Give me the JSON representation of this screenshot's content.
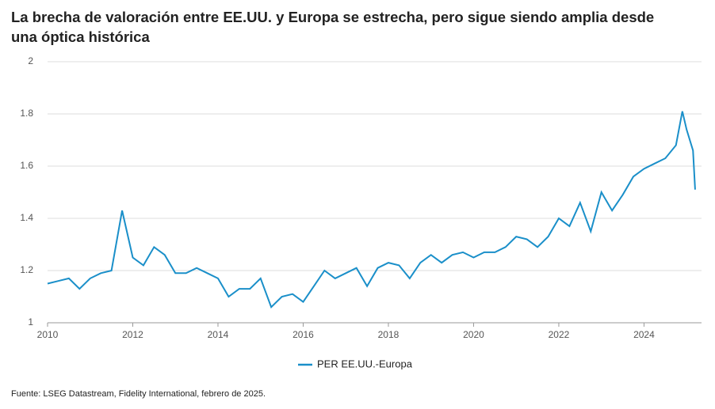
{
  "chart_data": {
    "type": "line",
    "title": "La brecha de valoración entre EE.UU. y Europa se estrecha, pero sigue siendo amplia desde una óptica histórica",
    "source": "Fuente: LSEG Datastream, Fidelity International, febrero de 2025.",
    "x": [
      2010,
      2010.25,
      2010.5,
      2010.75,
      2011,
      2011.25,
      2011.5,
      2011.75,
      2012,
      2012.25,
      2012.5,
      2012.75,
      2013,
      2013.25,
      2013.5,
      2013.75,
      2014,
      2014.25,
      2014.5,
      2014.75,
      2015,
      2015.25,
      2015.5,
      2015.75,
      2016,
      2016.25,
      2016.5,
      2016.75,
      2017,
      2017.25,
      2017.5,
      2017.75,
      2018,
      2018.25,
      2018.5,
      2018.75,
      2019,
      2019.25,
      2019.5,
      2019.75,
      2020,
      2020.25,
      2020.5,
      2020.75,
      2021,
      2021.25,
      2021.5,
      2021.75,
      2022,
      2022.25,
      2022.5,
      2022.75,
      2023,
      2023.25,
      2023.5,
      2023.75,
      2024,
      2024.25,
      2024.5,
      2024.75,
      2024.9,
      2025,
      2025.15,
      2025.2
    ],
    "series": [
      {
        "name": "PER EE.UU.-Europa",
        "color": "#1a8fc9",
        "values": [
          1.15,
          1.16,
          1.17,
          1.13,
          1.17,
          1.19,
          1.2,
          1.43,
          1.25,
          1.22,
          1.29,
          1.26,
          1.19,
          1.19,
          1.21,
          1.19,
          1.17,
          1.1,
          1.13,
          1.13,
          1.17,
          1.06,
          1.1,
          1.11,
          1.08,
          1.14,
          1.2,
          1.17,
          1.19,
          1.21,
          1.14,
          1.21,
          1.23,
          1.22,
          1.17,
          1.23,
          1.26,
          1.23,
          1.26,
          1.27,
          1.25,
          1.27,
          1.27,
          1.29,
          1.33,
          1.32,
          1.29,
          1.33,
          1.4,
          1.37,
          1.46,
          1.35,
          1.5,
          1.43,
          1.49,
          1.56,
          1.59,
          1.61,
          1.63,
          1.68,
          1.81,
          1.74,
          1.66,
          1.51
        ]
      }
    ],
    "xlim": [
      2010,
      2025.35
    ],
    "xticks": [
      2010,
      2012,
      2014,
      2016,
      2018,
      2020,
      2022,
      2024
    ],
    "ylim": [
      1,
      2
    ],
    "yticks": [
      1,
      1.2,
      1.4,
      1.6,
      1.8,
      2
    ],
    "grid": true,
    "legend": "bottom"
  }
}
